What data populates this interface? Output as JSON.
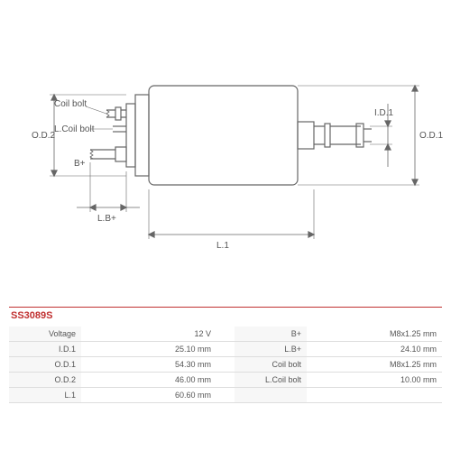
{
  "part_number": "SS3089S",
  "diagram": {
    "type": "engineering-drawing",
    "stroke_color": "#666666",
    "stroke_width": 1.2,
    "text_color": "#555555",
    "font_size": 10,
    "labels": {
      "coil_bolt": "Coil bolt",
      "l_coil_bolt": "L.Coil bolt",
      "b_plus": "B+",
      "od2": "O.D.2",
      "od1": "O.D.1",
      "id1": "I.D.1",
      "lb_plus": "L.B+",
      "l1": "L.1"
    }
  },
  "specs_left": [
    {
      "label": "Voltage",
      "value": "12 V"
    },
    {
      "label": "I.D.1",
      "value": "25.10 mm"
    },
    {
      "label": "O.D.1",
      "value": "54.30 mm"
    },
    {
      "label": "O.D.2",
      "value": "46.00 mm"
    },
    {
      "label": "L.1",
      "value": "60.60 mm"
    }
  ],
  "specs_right": [
    {
      "label": "B+",
      "value": "M8x1.25 mm"
    },
    {
      "label": "L.B+",
      "value": "24.10 mm"
    },
    {
      "label": "Coil bolt",
      "value": "M8x1.25 mm"
    },
    {
      "label": "L.Coil bolt",
      "value": "10.00 mm"
    }
  ],
  "table_style": {
    "border_color": "#dddddd",
    "label_bg": "#f7f7f7",
    "text_color": "#555555",
    "font_size": 9,
    "accent_color": "#c03030"
  }
}
